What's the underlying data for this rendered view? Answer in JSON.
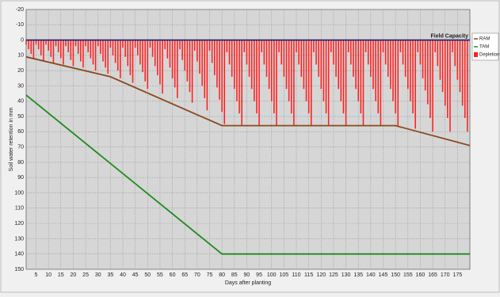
{
  "chart_data": {
    "type": "combo",
    "x_label": "Days after planting",
    "y_label": "Soil water retention in mm",
    "xlim": [
      1,
      180
    ],
    "ylim": [
      -20,
      150
    ],
    "y_inverted": true,
    "xticks": [
      5,
      10,
      15,
      20,
      25,
      30,
      35,
      40,
      45,
      50,
      55,
      60,
      65,
      70,
      75,
      80,
      85,
      90,
      95,
      100,
      105,
      110,
      115,
      120,
      125,
      130,
      135,
      140,
      145,
      150,
      155,
      160,
      165,
      170,
      175
    ],
    "yticks": [
      -20,
      -10,
      0,
      10,
      20,
      30,
      40,
      50,
      60,
      70,
      80,
      90,
      100,
      110,
      120,
      130,
      140,
      150
    ],
    "grid": true,
    "legend": "top-right",
    "reference_lines": [
      {
        "label": "Field Capacity",
        "value": 0,
        "color": "#1c1c6e"
      }
    ],
    "series": [
      {
        "name": "RAM",
        "type": "line",
        "color": "#8b4a1c",
        "x": [
          1,
          35,
          80,
          150,
          180
        ],
        "values": [
          11,
          24,
          56,
          56,
          69
        ]
      },
      {
        "name": "TAM",
        "type": "line",
        "color": "#1f8a1f",
        "x": [
          1,
          80,
          180
        ],
        "values": [
          36,
          140,
          140
        ]
      },
      {
        "name": "Depletion",
        "type": "bar",
        "color": "#ff2020",
        "x": [
          1,
          2,
          3,
          4,
          5,
          6,
          7,
          8,
          9,
          10,
          11,
          12,
          13,
          14,
          15,
          16,
          17,
          18,
          19,
          20,
          21,
          22,
          23,
          24,
          25,
          26,
          27,
          28,
          29,
          30,
          31,
          32,
          33,
          34,
          35,
          36,
          37,
          38,
          39,
          40,
          41,
          42,
          43,
          44,
          45,
          46,
          47,
          48,
          49,
          50,
          51,
          52,
          53,
          54,
          55,
          56,
          57,
          58,
          59,
          60,
          61,
          62,
          63,
          64,
          65,
          66,
          67,
          68,
          69,
          70,
          71,
          72,
          73,
          74,
          75,
          76,
          77,
          78,
          79,
          80,
          81,
          82,
          83,
          84,
          85,
          86,
          87,
          88,
          89,
          90,
          91,
          92,
          93,
          94,
          95,
          96,
          97,
          98,
          99,
          100,
          101,
          102,
          103,
          104,
          105,
          106,
          107,
          108,
          109,
          110,
          111,
          112,
          113,
          114,
          115,
          116,
          117,
          118,
          119,
          120,
          121,
          122,
          123,
          124,
          125,
          126,
          127,
          128,
          129,
          130,
          131,
          132,
          133,
          134,
          135,
          136,
          137,
          138,
          139,
          140,
          141,
          142,
          143,
          144,
          145,
          146,
          147,
          148,
          149,
          150,
          151,
          152,
          153,
          154,
          155,
          156,
          157,
          158,
          159,
          160,
          161,
          162,
          163,
          164,
          165,
          166,
          167,
          168,
          169,
          170,
          171,
          172,
          173,
          174,
          175,
          176,
          177,
          178,
          179
        ],
        "values": [
          3,
          6,
          9,
          12,
          3,
          6,
          10,
          14,
          3,
          7,
          11,
          15,
          4,
          8,
          12,
          16,
          4,
          8,
          13,
          17,
          4,
          9,
          14,
          18,
          4,
          8,
          12,
          16,
          20,
          4,
          9,
          14,
          18,
          22,
          5,
          10,
          15,
          20,
          25,
          5,
          11,
          17,
          23,
          28,
          5,
          10,
          16,
          21,
          27,
          32,
          5,
          11,
          17,
          23,
          29,
          35,
          6,
          12,
          18,
          25,
          31,
          38,
          6,
          13,
          20,
          27,
          34,
          41,
          7,
          14,
          22,
          30,
          38,
          46,
          7,
          15,
          23,
          31,
          39,
          47,
          55,
          8,
          16,
          24,
          32,
          40,
          48,
          56,
          8,
          16,
          24,
          32,
          40,
          48,
          56,
          8,
          16,
          24,
          32,
          40,
          48,
          56,
          8,
          16,
          24,
          32,
          40,
          48,
          56,
          8,
          16,
          24,
          32,
          40,
          48,
          56,
          8,
          16,
          24,
          32,
          40,
          48,
          56,
          8,
          16,
          24,
          32,
          40,
          48,
          56,
          8,
          16,
          24,
          32,
          40,
          48,
          56,
          8,
          16,
          24,
          32,
          40,
          48,
          56,
          8,
          16,
          24,
          32,
          40,
          48,
          56,
          8,
          16,
          24,
          32,
          40,
          48,
          58,
          8,
          16,
          25,
          33,
          42,
          51,
          60,
          8,
          17,
          26,
          34,
          43,
          51,
          60,
          8,
          17,
          26,
          34,
          43,
          51,
          60
        ]
      }
    ]
  }
}
